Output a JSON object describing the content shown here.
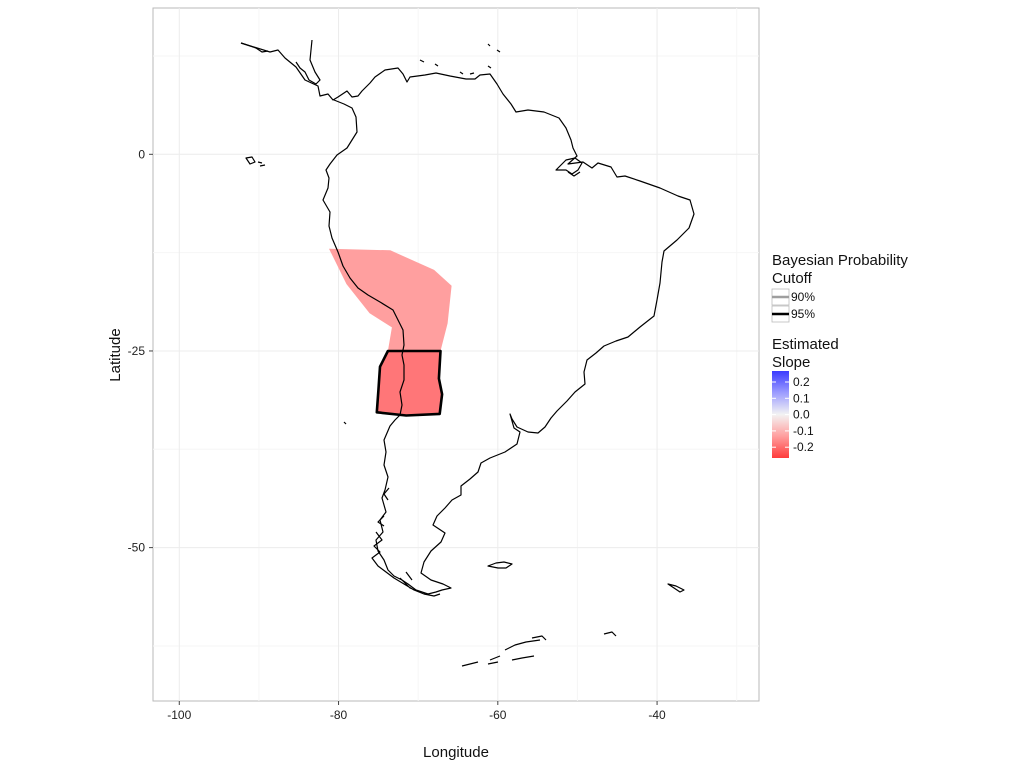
{
  "chart_data": {
    "type": "map",
    "xlabel": "Longitude",
    "ylabel": "Latitude",
    "xlim": [
      -103.3,
      -27.2
    ],
    "ylim": [
      -69.5,
      18.6
    ],
    "x_ticks": [
      {
        "value": -100,
        "label": "-100"
      },
      {
        "value": -80,
        "label": "-80"
      },
      {
        "value": -60,
        "label": "-60"
      },
      {
        "value": -40,
        "label": "-40"
      }
    ],
    "y_ticks": [
      {
        "value": 0,
        "label": "0"
      },
      {
        "value": -25,
        "label": "-25"
      },
      {
        "value": -50,
        "label": "-50"
      }
    ],
    "grid": true,
    "regions": [
      {
        "id": "band-north",
        "estimated_slope": -0.12,
        "cutoff": "none",
        "color": "#ff9f9f",
        "polygon": [
          [
            -81.2,
            -12.0
          ],
          [
            -73.5,
            -12.2
          ],
          [
            -68,
            -14.7
          ],
          [
            -65.8,
            -16.7
          ],
          [
            -66.3,
            -21.5
          ],
          [
            -67.2,
            -25
          ],
          [
            -73.8,
            -25
          ],
          [
            -73.3,
            -22
          ],
          [
            -76.1,
            -20.2
          ],
          [
            -79,
            -16.5
          ],
          [
            -81.2,
            -12.0
          ]
        ]
      },
      {
        "id": "band-south",
        "estimated_slope": -0.17,
        "cutoff": "95%",
        "color": "#ff7678",
        "polygon": [
          [
            -73.8,
            -25
          ],
          [
            -67.2,
            -25
          ],
          [
            -67.4,
            -28.5
          ],
          [
            -67.0,
            -30.5
          ],
          [
            -67.3,
            -33.0
          ],
          [
            -71.5,
            -33.2
          ],
          [
            -75.2,
            -32.8
          ],
          [
            -75.0,
            -30
          ],
          [
            -74.8,
            -27
          ],
          [
            -73.8,
            -25
          ]
        ]
      }
    ],
    "legends": [
      {
        "title_lines": [
          "Bayesian Probability",
          "Cutoff"
        ],
        "items": [
          {
            "label": "90%",
            "color": "#9e9e9e"
          },
          {
            "label": "95%",
            "color": "#000000"
          }
        ]
      },
      {
        "title_lines": [
          "Estimated",
          "Slope"
        ],
        "color_scale": [
          {
            "value": 0.2,
            "label": "0.2",
            "color": "#3b3bff"
          },
          {
            "value": 0.1,
            "label": "0.1",
            "color": "#9c9cff"
          },
          {
            "value": 0.0,
            "label": "0.0",
            "color": "#f3f3f3"
          },
          {
            "value": -0.1,
            "label": "-0.1",
            "color": "#ff9e9e"
          },
          {
            "value": -0.2,
            "label": "-0.2",
            "color": "#ff3b3b"
          }
        ]
      }
    ]
  }
}
